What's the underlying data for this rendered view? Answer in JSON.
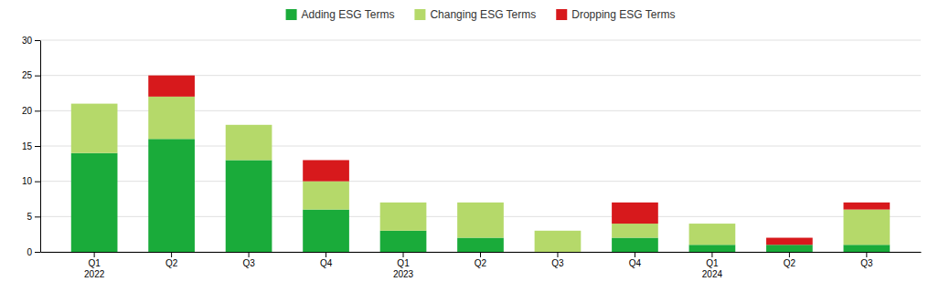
{
  "chart_data": {
    "type": "bar",
    "stacked": true,
    "categories": [
      "Q1\n2022",
      "Q2",
      "Q3",
      "Q4",
      "Q1\n2023",
      "Q2",
      "Q3",
      "Q4",
      "Q1\n2024",
      "Q2",
      "Q3"
    ],
    "series": [
      {
        "name": "Adding ESG Terms",
        "color": "#1aab3a",
        "values": [
          14,
          16,
          13,
          6,
          3,
          2,
          0,
          2,
          1,
          1,
          1
        ]
      },
      {
        "name": "Changing ESG Terms",
        "color": "#b5d96a",
        "values": [
          7,
          6,
          5,
          4,
          4,
          5,
          3,
          2,
          3,
          0,
          5
        ]
      },
      {
        "name": "Dropping ESG Terms",
        "color": "#d7191c",
        "values": [
          0,
          3,
          0,
          3,
          0,
          0,
          0,
          3,
          0,
          1,
          1
        ]
      }
    ],
    "ylim": [
      0,
      30
    ],
    "yticks": [
      0,
      5,
      10,
      15,
      20,
      25,
      30
    ],
    "grid": true,
    "legend": "top"
  }
}
